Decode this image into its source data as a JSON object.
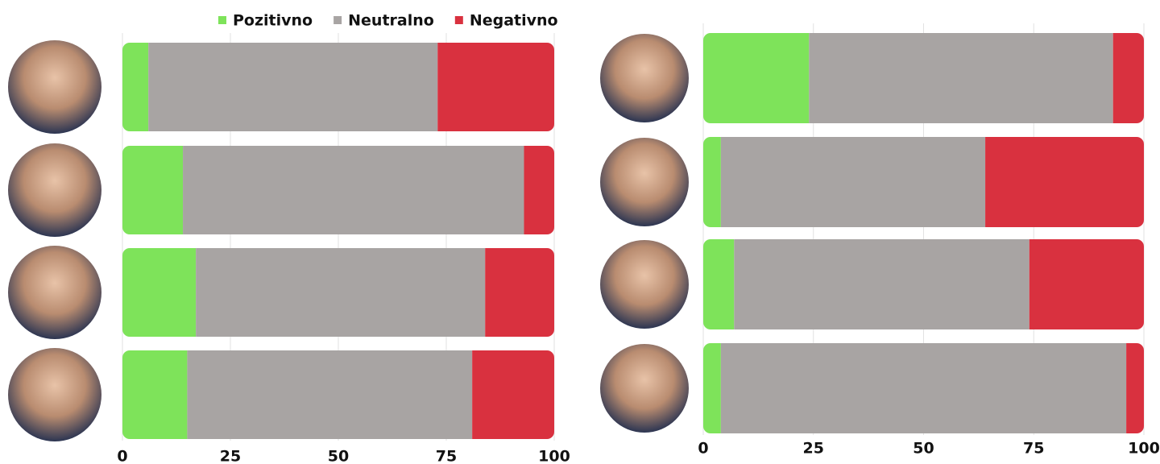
{
  "chart_data": [
    {
      "type": "bar",
      "orientation": "horizontal",
      "stacked": true,
      "legend": true,
      "categories": [
        null,
        null,
        null,
        null
      ],
      "series": [
        {
          "name": "Pozitivno",
          "color": "#7ee35a",
          "values": [
            6,
            14,
            17,
            15
          ]
        },
        {
          "name": "Neutralno",
          "color": "#a8a4a3",
          "values": [
            67,
            79,
            67,
            66
          ]
        },
        {
          "name": "Negativno",
          "color": "#d9313f",
          "values": [
            27,
            7,
            16,
            19
          ]
        }
      ],
      "xlim": [
        0,
        100
      ],
      "xticks": [
        0,
        25,
        50,
        75,
        100
      ],
      "grid": true
    },
    {
      "type": "bar",
      "orientation": "horizontal",
      "stacked": true,
      "legend": false,
      "categories": [
        null,
        null,
        null,
        null
      ],
      "series": [
        {
          "color": "#7ee35a",
          "values": [
            24,
            4,
            7,
            4
          ]
        },
        {
          "color": "#a8a4a3",
          "values": [
            69,
            60,
            67,
            92
          ]
        },
        {
          "color": "#d9313f",
          "values": [
            7,
            36,
            26,
            4
          ]
        }
      ],
      "xlim": [
        0,
        100
      ],
      "xticks": [
        0,
        25,
        50,
        75,
        100
      ],
      "grid": true
    }
  ]
}
